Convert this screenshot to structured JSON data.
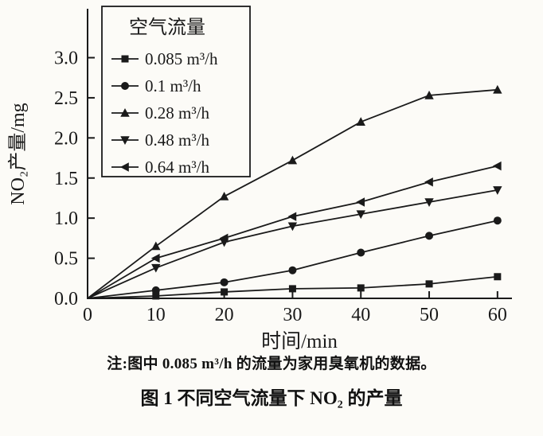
{
  "figure": {
    "note": "注:图中 0.085 m³/h 的流量为家用臭氧机的数据。",
    "caption": "图 1  不同空气流量下 NO₂ 的产量"
  },
  "colors": {
    "line": "#1a1a1a",
    "text": "#111111",
    "background": "#fcfbf7"
  },
  "chart_data": {
    "type": "line",
    "title": "",
    "xlabel": "时间/min",
    "ylabel": "NO₂产量/mg",
    "x": [
      0,
      10,
      20,
      30,
      40,
      50,
      60
    ],
    "xlim": [
      0,
      62
    ],
    "ylim": [
      0,
      3.6
    ],
    "xticks": [
      0,
      10,
      20,
      30,
      40,
      50,
      60
    ],
    "yticks": [
      0.0,
      0.5,
      1.0,
      1.5,
      2.0,
      2.5,
      3.0
    ],
    "grid": false,
    "legend": {
      "title": "空气流量",
      "position": "top-left"
    },
    "series": [
      {
        "name": "0.085 m³/h",
        "marker": "square",
        "values": [
          0,
          0.03,
          0.08,
          0.12,
          0.13,
          0.18,
          0.27
        ]
      },
      {
        "name": "0.1 m³/h",
        "marker": "circle",
        "values": [
          0,
          0.1,
          0.2,
          0.35,
          0.57,
          0.78,
          0.97
        ]
      },
      {
        "name": "0.28 m³/h",
        "marker": "triangle-up",
        "values": [
          0,
          0.65,
          1.27,
          1.72,
          2.2,
          2.53,
          2.6
        ]
      },
      {
        "name": "0.48 m³/h",
        "marker": "triangle-down",
        "values": [
          0,
          0.38,
          0.7,
          0.9,
          1.05,
          1.2,
          1.35
        ]
      },
      {
        "name": "0.64 m³/h",
        "marker": "triangle-left",
        "values": [
          0,
          0.5,
          0.75,
          1.02,
          1.2,
          1.45,
          1.65
        ]
      }
    ]
  }
}
